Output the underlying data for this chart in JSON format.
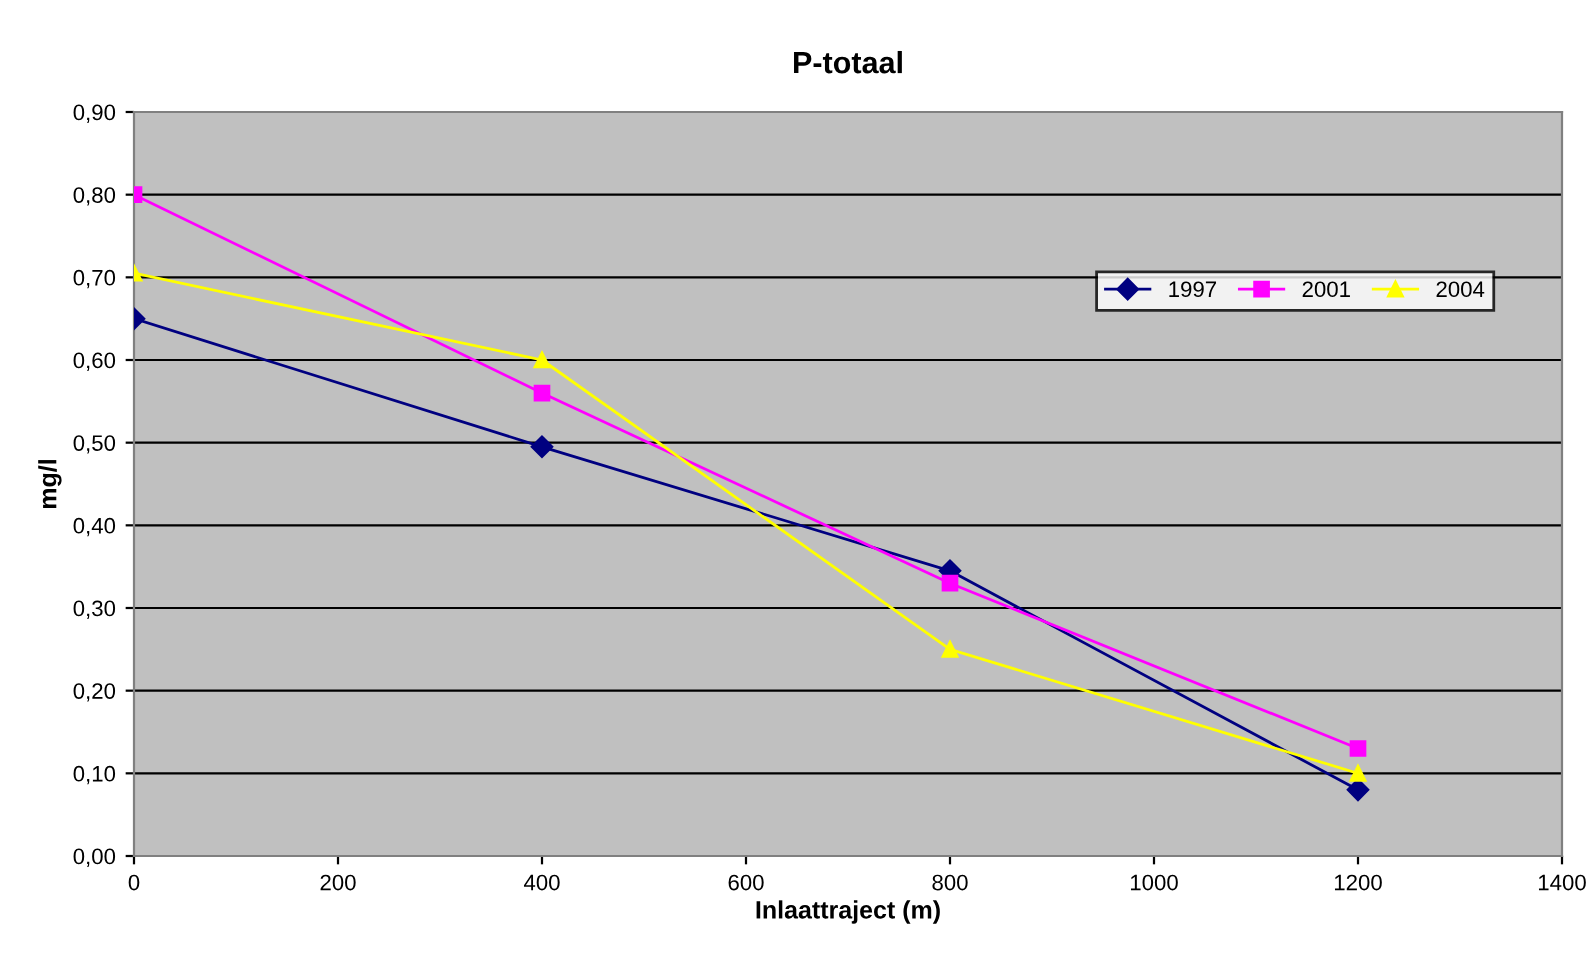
{
  "chart_data": {
    "type": "line",
    "title": "P-totaal",
    "xlabel": "Inlaattraject (m)",
    "ylabel": "mg/l",
    "x": [
      0,
      400,
      800,
      1200
    ],
    "series": [
      {
        "name": "1997",
        "color": "#000080",
        "marker": "diamond",
        "values": [
          0.65,
          0.495,
          0.345,
          0.08
        ]
      },
      {
        "name": "2001",
        "color": "#ff00ff",
        "marker": "square",
        "values": [
          0.8,
          0.56,
          0.33,
          0.13
        ]
      },
      {
        "name": "2004",
        "color": "#ffff00",
        "marker": "triangle",
        "values": [
          0.705,
          0.6,
          0.25,
          0.1
        ]
      }
    ],
    "xlim": [
      0,
      1400
    ],
    "xticks": [
      0,
      200,
      400,
      600,
      800,
      1000,
      1200,
      1400
    ],
    "ylim": [
      0,
      0.9
    ],
    "yticks": [
      {
        "value": 0,
        "label": "0,00"
      },
      {
        "value": 0.1,
        "label": "0,10"
      },
      {
        "value": 0.2,
        "label": "0,20"
      },
      {
        "value": 0.3,
        "label": "0,30"
      },
      {
        "value": 0.4,
        "label": "0,40"
      },
      {
        "value": 0.5,
        "label": "0,50"
      },
      {
        "value": 0.6,
        "label": "0,60"
      },
      {
        "value": 0.7,
        "label": "0,70"
      },
      {
        "value": 0.8,
        "label": "0,80"
      },
      {
        "value": 0.9,
        "label": "0,90"
      }
    ],
    "grid": "y",
    "legend": "top right",
    "line_style": "solid"
  }
}
